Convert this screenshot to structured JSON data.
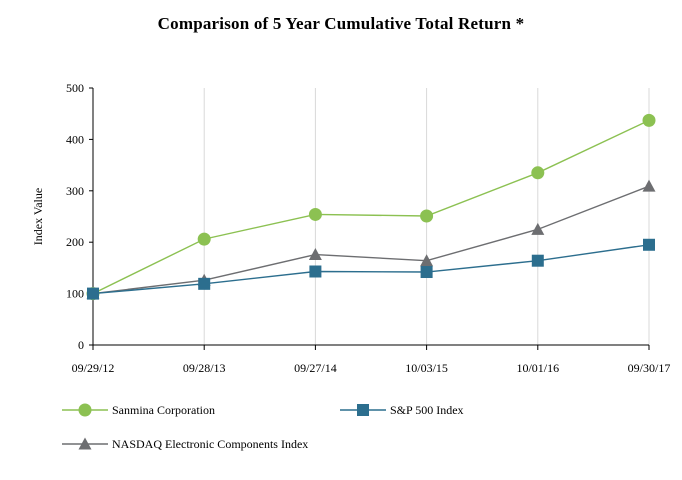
{
  "chart_data": {
    "type": "line",
    "title": "Comparison of 5 Year Cumulative Total Return *",
    "xlabel": "",
    "ylabel": "Index Value",
    "ylim": [
      0,
      500
    ],
    "yticks": [
      0,
      100,
      200,
      300,
      400,
      500
    ],
    "grid": "vertical",
    "categories": [
      "09/29/12",
      "09/28/13",
      "09/27/14",
      "10/03/15",
      "10/01/16",
      "09/30/17"
    ],
    "series": [
      {
        "name": "Sanmina Corporation",
        "color": "#8cc152",
        "marker": "circle",
        "values": [
          100,
          206,
          254,
          251,
          335,
          437
        ]
      },
      {
        "name": "S&P 500 Index",
        "color": "#2c6e8e",
        "marker": "square",
        "values": [
          100,
          119,
          143,
          142,
          164,
          195
        ]
      },
      {
        "name": "NASDAQ Electronic Components Index",
        "color": "#6d6e71",
        "marker": "triangle",
        "values": [
          100,
          126,
          176,
          164,
          225,
          309
        ]
      }
    ]
  }
}
